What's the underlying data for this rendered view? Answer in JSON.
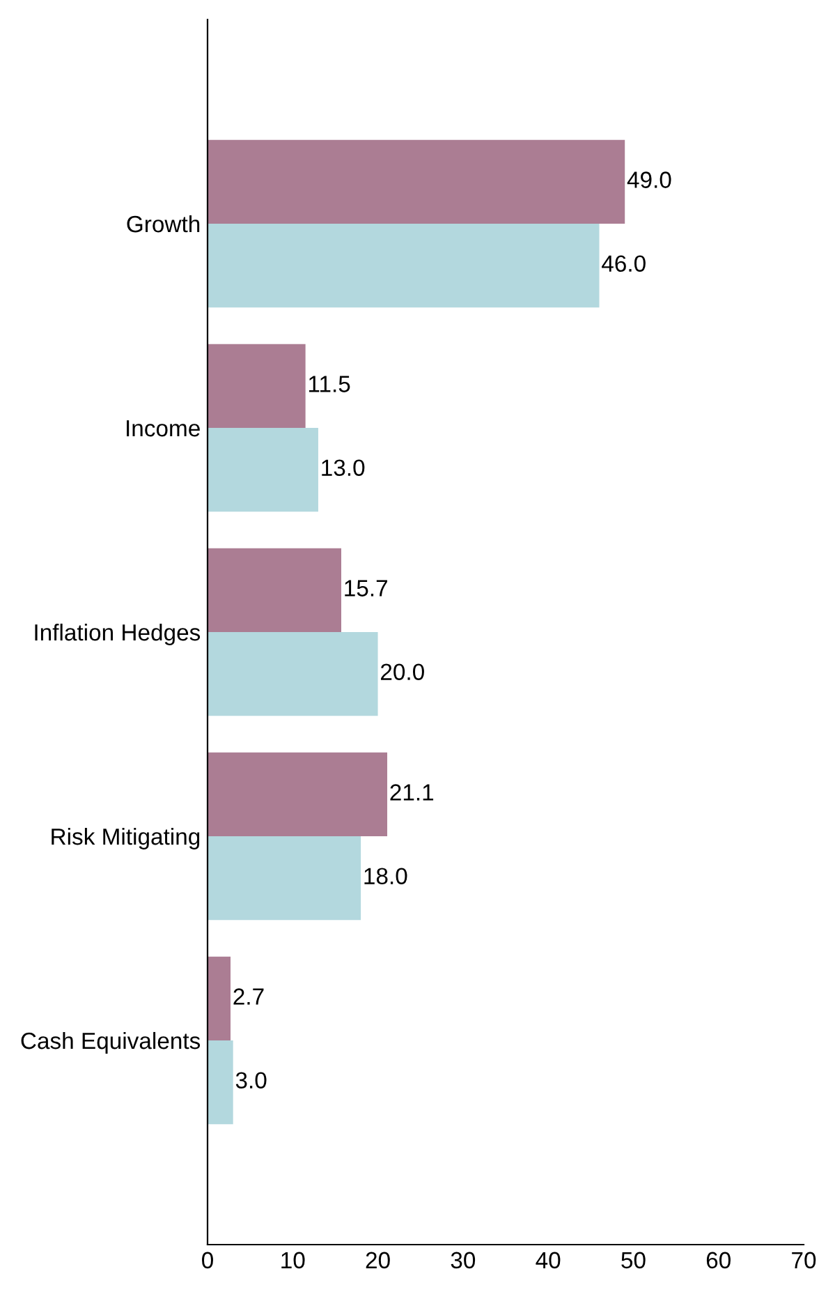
{
  "chart_data": {
    "type": "bar",
    "orientation": "horizontal",
    "categories": [
      "Growth",
      "Income",
      "Inflation Hedges",
      "Risk Mitigating",
      "Cash Equivalents"
    ],
    "series": [
      {
        "color": "#ab7d93",
        "values": [
          49.0,
          11.5,
          15.7,
          21.1,
          2.7
        ],
        "value_labels": [
          "49.0",
          "11.5",
          "15.7",
          "21.1",
          "2.7"
        ]
      },
      {
        "color": "#b3d8de",
        "values": [
          46.0,
          13.0,
          20.0,
          18.0,
          3.0
        ],
        "value_labels": [
          "46.0",
          "13.0",
          "20.0",
          "18.0",
          "3.0"
        ]
      }
    ],
    "xlim": [
      0,
      70
    ],
    "xticks": [
      0,
      10,
      20,
      30,
      40,
      50,
      60,
      70
    ]
  }
}
